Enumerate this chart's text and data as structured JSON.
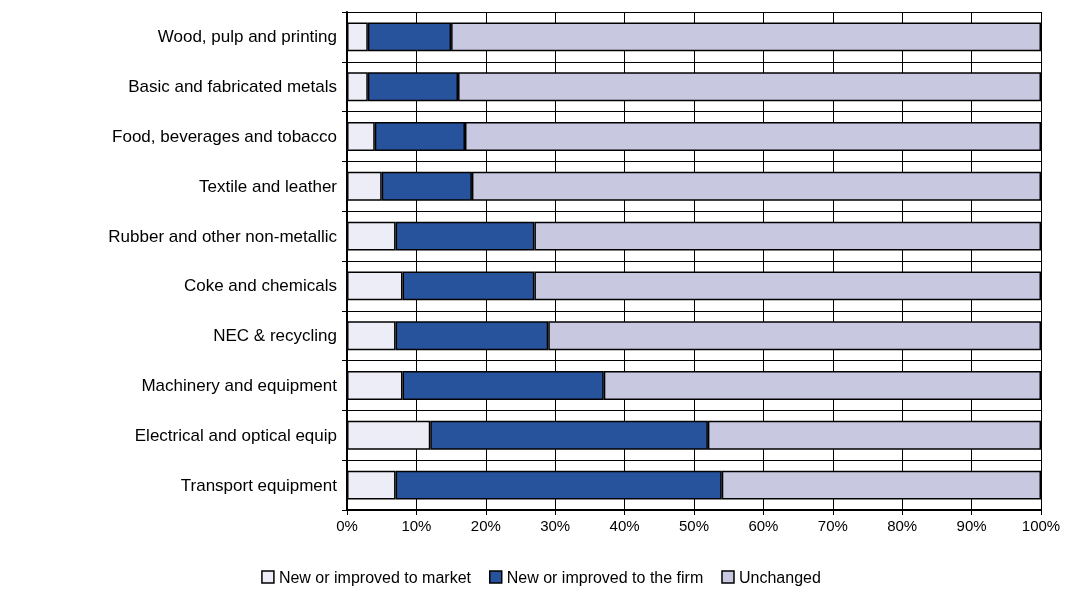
{
  "chart_data": {
    "type": "bar",
    "orientation": "horizontal",
    "stacked": true,
    "categories": [
      "Wood, pulp and printing",
      "Basic and fabricated metals",
      "Food, beverages and tobacco",
      "Textile and leather",
      "Rubber and other non-metallic",
      "Coke and chemicals",
      "NEC & recycling",
      "Machinery and equipment",
      "Electrical and optical equip",
      "Transport equipment"
    ],
    "series": [
      {
        "name": "New or improved to market",
        "color": "#ededf7",
        "values": [
          3,
          3,
          4,
          5,
          7,
          8,
          7,
          8,
          12,
          7
        ]
      },
      {
        "name": "New or improved to the firm",
        "color": "#26539b",
        "values": [
          12,
          13,
          13,
          13,
          20,
          19,
          22,
          29,
          40,
          47
        ]
      },
      {
        "name": "Unchanged",
        "color": "#c8c8e0",
        "values": [
          85,
          84,
          83,
          82,
          73,
          73,
          71,
          63,
          48,
          46
        ]
      }
    ],
    "xlim": [
      0,
      100
    ],
    "xticks": [
      {
        "value": 0,
        "label": "0%"
      },
      {
        "value": 10,
        "label": "10%"
      },
      {
        "value": 20,
        "label": "20%"
      },
      {
        "value": 30,
        "label": "30%"
      },
      {
        "value": 40,
        "label": "40%"
      },
      {
        "value": 50,
        "label": "50%"
      },
      {
        "value": 60,
        "label": "60%"
      },
      {
        "value": 70,
        "label": "70%"
      },
      {
        "value": 80,
        "label": "80%"
      },
      {
        "value": 90,
        "label": "90%"
      },
      {
        "value": 100,
        "label": "100%"
      }
    ],
    "grid": true,
    "legend": "bottom"
  }
}
